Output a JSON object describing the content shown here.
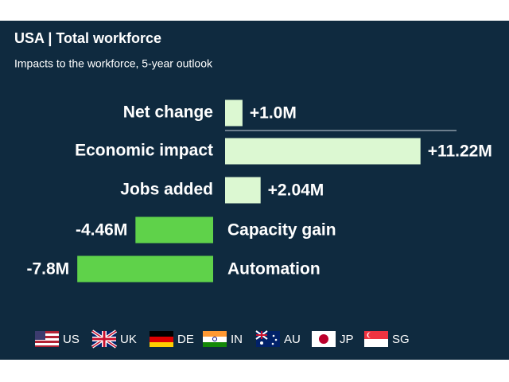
{
  "chart_data": {
    "type": "diverging-bar",
    "title": "USA | Total workforce",
    "subtitle": "Impacts to the workforce, 5-year outlook",
    "categories": [
      "Net change",
      "Economic impact",
      "Jobs added",
      "Capacity gain",
      "Automation"
    ],
    "values": [
      1.0,
      11.22,
      2.04,
      -4.46,
      -7.8
    ],
    "value_labels": [
      "+1.0M",
      "+11.22M",
      "+2.04M",
      "-4.46M",
      "-7.8M"
    ],
    "positive_color": "#dcf8d2",
    "negative_color": "#5fd24a",
    "legend": [
      "US",
      "UK",
      "DE",
      "IN",
      "AU",
      "JP",
      "SG"
    ]
  }
}
